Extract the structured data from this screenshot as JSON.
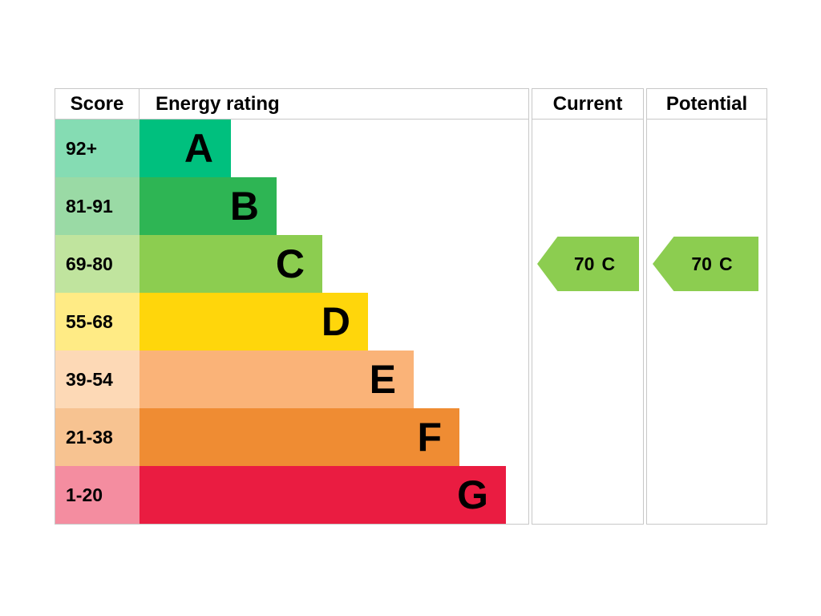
{
  "header": {
    "score": "Score",
    "energy_rating": "Energy rating",
    "current": "Current",
    "potential": "Potential"
  },
  "chart_data": {
    "type": "bar",
    "title": "Energy rating (EPC band chart)",
    "categories": [
      "A",
      "B",
      "C",
      "D",
      "E",
      "F",
      "G"
    ],
    "bands": [
      {
        "score": "92+",
        "letter": "A",
        "color": "#00c07e",
        "score_color": "#85dcb3"
      },
      {
        "score": "81-91",
        "letter": "B",
        "color": "#2eb554",
        "score_color": "#9adaa5"
      },
      {
        "score": "69-80",
        "letter": "C",
        "color": "#8ccd50",
        "score_color": "#c0e49e"
      },
      {
        "score": "55-68",
        "letter": "D",
        "color": "#ffd60b",
        "score_color": "#ffeb85"
      },
      {
        "score": "39-54",
        "letter": "E",
        "color": "#fab378",
        "score_color": "#fdd9b6"
      },
      {
        "score": "21-38",
        "letter": "F",
        "color": "#ef8c33",
        "score_color": "#f7c391"
      },
      {
        "score": "1-20",
        "letter": "G",
        "color": "#ea1c41",
        "score_color": "#f48da0"
      }
    ],
    "current": {
      "value": "70",
      "letter": "C",
      "color": "#8ccd50"
    },
    "potential": {
      "value": "70",
      "letter": "C",
      "color": "#8ccd50"
    }
  }
}
